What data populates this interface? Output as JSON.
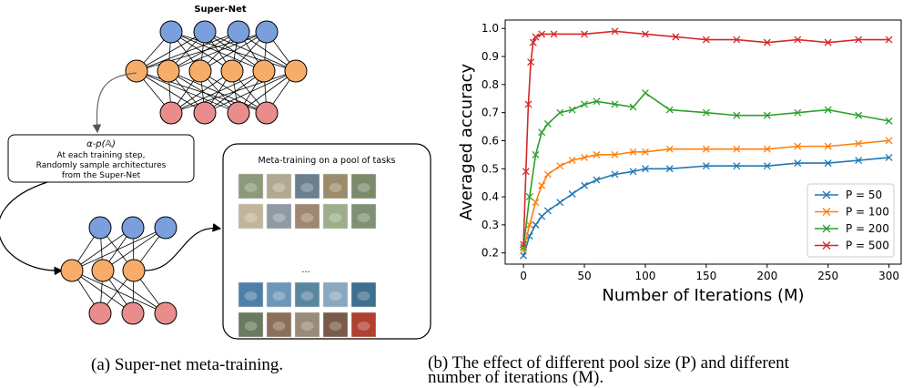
{
  "figure_a": {
    "supernet_title": "Super-Net",
    "box_formula": "α-p(𝔸)",
    "box_lines": [
      "At each training step,",
      "Randomly sample architectures",
      "from the Super-Net"
    ],
    "pool_title": "Meta-training on a pool of tasks",
    "ellipsis": "...",
    "caption": "(a) Super-net meta-training.",
    "node_colors": {
      "blue": "#7b9fdc",
      "orange": "#f8ac6a",
      "red": "#eb8c8c"
    }
  },
  "figure_b": {
    "caption_line1": "(b) The effect of different pool size (P) and different",
    "caption_line2": "number of iterations (M)."
  },
  "chart_data": {
    "type": "line",
    "xlabel": "Number of Iterations (M)",
    "ylabel": "Averaged accuracy",
    "xlim": [
      -15,
      310
    ],
    "ylim": [
      0.16,
      1.03
    ],
    "xticks": [
      0,
      50,
      100,
      150,
      200,
      250,
      300
    ],
    "yticks": [
      0.2,
      0.3,
      0.4,
      0.5,
      0.6,
      0.7,
      0.8,
      0.9,
      1.0
    ],
    "legend_position": "lower-right",
    "marker": "x",
    "series": [
      {
        "name": "P = 50",
        "color": "#1f77b4",
        "x": [
          0,
          5,
          10,
          15,
          20,
          30,
          40,
          50,
          60,
          75,
          90,
          100,
          120,
          150,
          175,
          200,
          225,
          250,
          275,
          300
        ],
        "y": [
          0.19,
          0.26,
          0.3,
          0.33,
          0.35,
          0.38,
          0.41,
          0.44,
          0.46,
          0.48,
          0.49,
          0.5,
          0.5,
          0.51,
          0.51,
          0.51,
          0.52,
          0.52,
          0.53,
          0.54
        ]
      },
      {
        "name": "P = 100",
        "color": "#ff7f0e",
        "x": [
          0,
          5,
          10,
          15,
          20,
          30,
          40,
          50,
          60,
          75,
          90,
          100,
          120,
          150,
          175,
          200,
          225,
          250,
          275,
          300
        ],
        "y": [
          0.21,
          0.3,
          0.38,
          0.44,
          0.48,
          0.51,
          0.53,
          0.54,
          0.55,
          0.55,
          0.56,
          0.56,
          0.57,
          0.57,
          0.57,
          0.57,
          0.58,
          0.58,
          0.59,
          0.6
        ]
      },
      {
        "name": "P = 200",
        "color": "#2ca02c",
        "x": [
          0,
          5,
          10,
          15,
          20,
          30,
          40,
          50,
          60,
          75,
          90,
          100,
          120,
          150,
          175,
          200,
          225,
          250,
          275,
          300
        ],
        "y": [
          0.22,
          0.4,
          0.55,
          0.63,
          0.66,
          0.7,
          0.71,
          0.73,
          0.74,
          0.73,
          0.72,
          0.77,
          0.71,
          0.7,
          0.69,
          0.69,
          0.7,
          0.71,
          0.69,
          0.67
        ]
      },
      {
        "name": "P = 500",
        "color": "#d62728",
        "x": [
          0,
          2,
          4,
          6,
          8,
          10,
          15,
          25,
          50,
          75,
          100,
          125,
          150,
          175,
          200,
          225,
          250,
          275,
          300
        ],
        "y": [
          0.23,
          0.49,
          0.73,
          0.88,
          0.95,
          0.97,
          0.98,
          0.98,
          0.98,
          0.99,
          0.98,
          0.97,
          0.96,
          0.96,
          0.95,
          0.96,
          0.95,
          0.96,
          0.96
        ]
      }
    ]
  }
}
